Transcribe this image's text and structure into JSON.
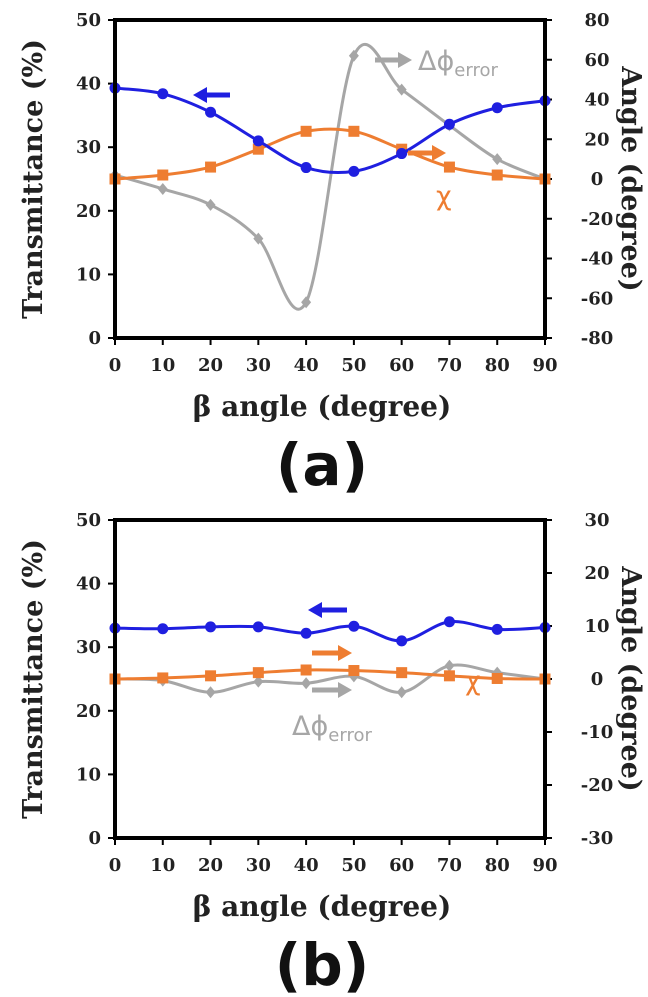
{
  "colors": {
    "transmittance": "#1f1fe0",
    "chi": "#ee7d31",
    "delta_phi": "#a6a6a6",
    "axis": "#000000"
  },
  "chart_data": [
    {
      "panel_label": "(a)",
      "type": "line",
      "xlabel": "β angle (degree)",
      "ylabel": "Transmittance (%)",
      "y2label": "Angle (degree)",
      "xlim": [
        0,
        90
      ],
      "ylim": [
        0,
        50
      ],
      "y2lim": [
        -80,
        80
      ],
      "xticks": [
        "0",
        "10",
        "20",
        "30",
        "40",
        "50",
        "60",
        "70",
        "80",
        "90"
      ],
      "yticks": [
        "0",
        "10",
        "20",
        "30",
        "40",
        "50"
      ],
      "y2ticks": [
        "-80",
        "-60",
        "-40",
        "-20",
        "0",
        "20",
        "40",
        "60",
        "80"
      ],
      "x": [
        0,
        10,
        20,
        30,
        40,
        50,
        60,
        70,
        80,
        90
      ],
      "series": [
        {
          "key": "transmittance",
          "axis": "left",
          "marker": "circle",
          "values": [
            39.3,
            38.4,
            35.5,
            31.0,
            26.8,
            26.2,
            29.0,
            33.6,
            36.2,
            37.3
          ]
        },
        {
          "key": "chi",
          "name": "χ",
          "axis": "right",
          "marker": "square",
          "values": [
            0,
            2,
            6,
            15,
            24,
            24,
            15,
            6,
            2,
            0
          ]
        },
        {
          "key": "delta_phi",
          "name_main": "Δϕ",
          "name_sub": "error",
          "axis": "right",
          "marker": "diamond",
          "values": [
            2,
            -5,
            -13,
            -30,
            -62,
            62,
            45,
            27,
            10,
            0
          ]
        }
      ]
    },
    {
      "panel_label": "(b)",
      "type": "line",
      "xlabel": "β angle (degree)",
      "ylabel": "Transmittance (%)",
      "y2label": "Angle (degree)",
      "xlim": [
        0,
        90
      ],
      "ylim": [
        0,
        50
      ],
      "y2lim": [
        -30,
        30
      ],
      "xticks": [
        "0",
        "10",
        "20",
        "30",
        "40",
        "50",
        "60",
        "70",
        "80",
        "90"
      ],
      "yticks": [
        "0",
        "10",
        "20",
        "30",
        "40",
        "50"
      ],
      "y2ticks": [
        "-30",
        "-20",
        "-10",
        "0",
        "10",
        "20",
        "30"
      ],
      "x": [
        0,
        10,
        20,
        30,
        40,
        50,
        60,
        70,
        80,
        90
      ],
      "series": [
        {
          "key": "transmittance",
          "axis": "left",
          "marker": "circle",
          "values": [
            33.0,
            32.9,
            33.2,
            33.2,
            32.2,
            33.3,
            31.0,
            34.0,
            32.8,
            33.1
          ]
        },
        {
          "key": "chi",
          "name": "χ",
          "axis": "right",
          "marker": "square",
          "values": [
            0,
            0.2,
            0.6,
            1.2,
            1.7,
            1.6,
            1.2,
            0.6,
            0.1,
            0
          ]
        },
        {
          "key": "delta_phi",
          "name_main": "Δϕ",
          "name_sub": "error",
          "axis": "right",
          "marker": "diamond",
          "values": [
            0,
            -0.3,
            -2.5,
            -0.5,
            -0.8,
            0.5,
            -2.5,
            2.5,
            1.2,
            0
          ]
        }
      ]
    }
  ]
}
